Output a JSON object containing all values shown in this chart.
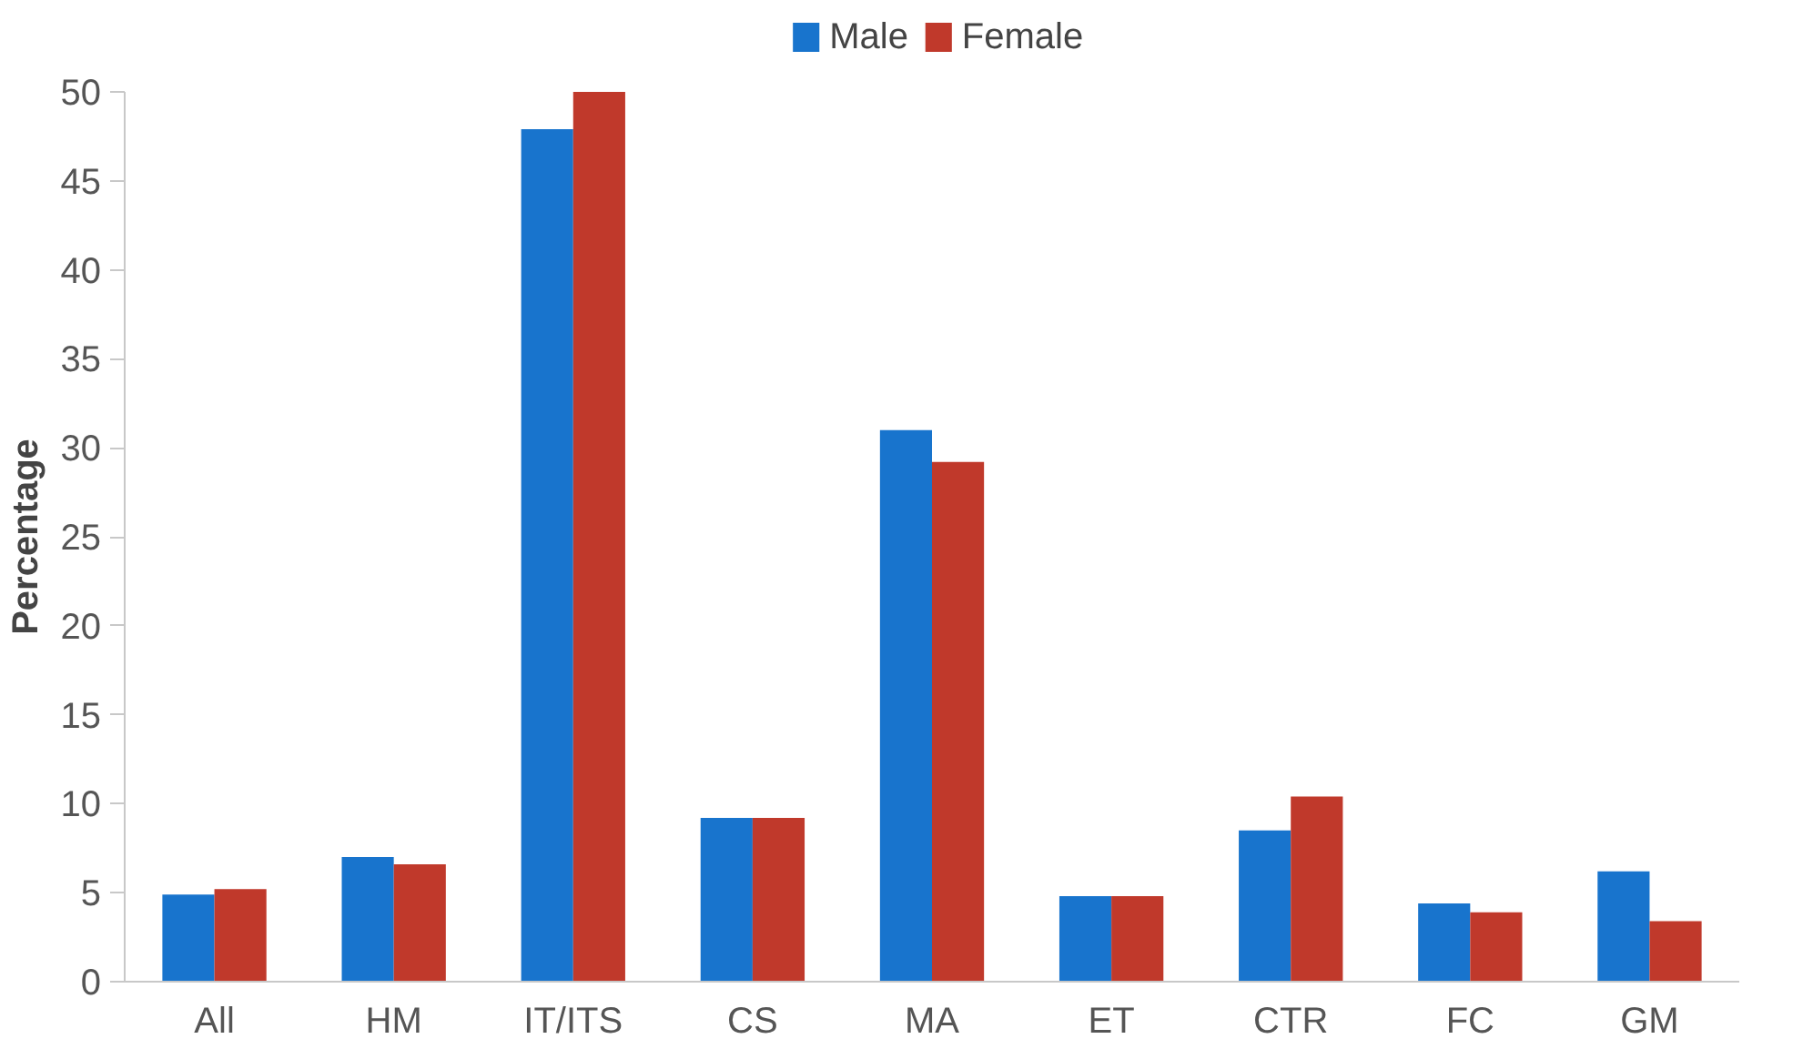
{
  "chart_data": {
    "type": "bar",
    "ylabel": "Percentage",
    "categories": [
      "All",
      "HM",
      "IT/ITS",
      "CS",
      "MA",
      "ET",
      "CTR",
      "FC",
      "GM"
    ],
    "series": [
      {
        "name": "Male",
        "color": "#1874cd",
        "values": [
          4.9,
          7.0,
          47.9,
          9.2,
          31.0,
          4.8,
          8.5,
          4.4,
          6.2
        ]
      },
      {
        "name": "Female",
        "color": "#c0392b",
        "values": [
          5.2,
          6.6,
          50,
          9.2,
          29.2,
          4.8,
          10.4,
          3.9,
          3.4
        ]
      }
    ],
    "ylim": [
      0,
      50
    ],
    "yticks": [
      0,
      5,
      10,
      15,
      20,
      25,
      30,
      35,
      40,
      45,
      50
    ],
    "grid": false,
    "legend": "top"
  }
}
